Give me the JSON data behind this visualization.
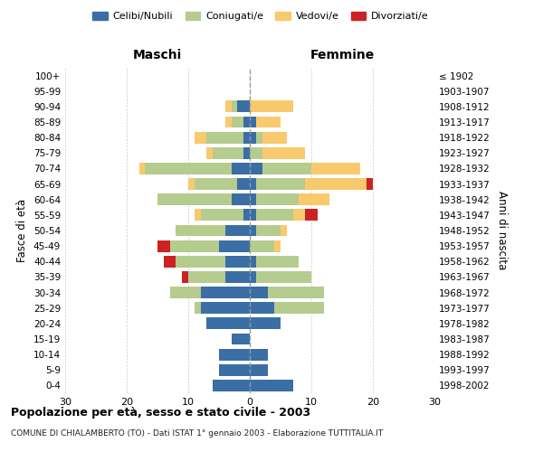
{
  "age_groups": [
    "0-4",
    "5-9",
    "10-14",
    "15-19",
    "20-24",
    "25-29",
    "30-34",
    "35-39",
    "40-44",
    "45-49",
    "50-54",
    "55-59",
    "60-64",
    "65-69",
    "70-74",
    "75-79",
    "80-84",
    "85-89",
    "90-94",
    "95-99",
    "100+"
  ],
  "birth_years": [
    "1998-2002",
    "1993-1997",
    "1988-1992",
    "1983-1987",
    "1978-1982",
    "1973-1977",
    "1968-1972",
    "1963-1967",
    "1958-1962",
    "1953-1957",
    "1948-1952",
    "1943-1947",
    "1938-1942",
    "1933-1937",
    "1928-1932",
    "1923-1927",
    "1918-1922",
    "1913-1917",
    "1908-1912",
    "1903-1907",
    "≤ 1902"
  ],
  "males": {
    "celibi": [
      6,
      5,
      5,
      3,
      7,
      8,
      8,
      4,
      4,
      5,
      4,
      1,
      3,
      2,
      3,
      1,
      1,
      1,
      2,
      0,
      0
    ],
    "coniugati": [
      0,
      0,
      0,
      0,
      0,
      1,
      5,
      6,
      8,
      8,
      8,
      7,
      12,
      7,
      14,
      5,
      6,
      2,
      1,
      0,
      0
    ],
    "vedovi": [
      0,
      0,
      0,
      0,
      0,
      0,
      0,
      0,
      0,
      0,
      0,
      1,
      0,
      1,
      1,
      1,
      2,
      1,
      1,
      0,
      0
    ],
    "divorziati": [
      0,
      0,
      0,
      0,
      0,
      0,
      0,
      1,
      2,
      2,
      0,
      0,
      0,
      0,
      0,
      0,
      0,
      0,
      0,
      0,
      0
    ]
  },
  "females": {
    "nubili": [
      7,
      3,
      3,
      0,
      5,
      4,
      3,
      1,
      1,
      0,
      1,
      1,
      1,
      1,
      2,
      0,
      1,
      1,
      0,
      0,
      0
    ],
    "coniugate": [
      0,
      0,
      0,
      0,
      0,
      8,
      9,
      9,
      7,
      4,
      4,
      6,
      7,
      8,
      8,
      2,
      1,
      0,
      0,
      0,
      0
    ],
    "vedove": [
      0,
      0,
      0,
      0,
      0,
      0,
      0,
      0,
      0,
      1,
      1,
      2,
      5,
      10,
      8,
      7,
      4,
      4,
      7,
      0,
      0
    ],
    "divorziate": [
      0,
      0,
      0,
      0,
      0,
      0,
      0,
      0,
      0,
      0,
      0,
      2,
      0,
      1,
      0,
      0,
      0,
      0,
      0,
      0,
      0
    ]
  },
  "colors": {
    "celibi": "#3a6ea5",
    "coniugati": "#b5cc8e",
    "vedovi": "#f9c96d",
    "divorziati": "#cc2222"
  },
  "title": "Popolazione per età, sesso e stato civile - 2003",
  "subtitle": "COMUNE DI CHIALAMBERTO (TO) - Dati ISTAT 1° gennaio 2003 - Elaborazione TUTTITALIA.IT",
  "xlabel_left": "Maschi",
  "xlabel_right": "Femmine",
  "ylabel_left": "Fasce di età",
  "ylabel_right": "Anni di nascita",
  "xlim": 30,
  "background_color": "#ffffff",
  "grid_color": "#cccccc"
}
